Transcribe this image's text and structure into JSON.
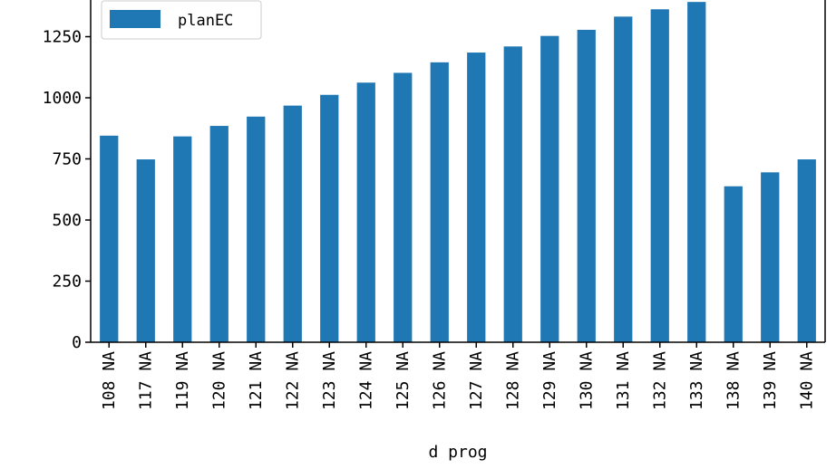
{
  "chart_data": {
    "type": "bar",
    "title": "",
    "xlabel": "d prog",
    "ylabel": "",
    "categories": [
      "108 NA",
      "117 NA",
      "119 NA",
      "120 NA",
      "121 NA",
      "122 NA",
      "123 NA",
      "124 NA",
      "125 NA",
      "126 NA",
      "127 NA",
      "128 NA",
      "129 NA",
      "130 NA",
      "131 NA",
      "132 NA",
      "133 NA",
      "138 NA",
      "139 NA",
      "140 NA"
    ],
    "series": [
      {
        "name": "planEC",
        "color": "#1f77b4",
        "values": [
          845,
          748,
          842,
          885,
          923,
          968,
          1012,
          1062,
          1102,
          1145,
          1185,
          1210,
          1253,
          1278,
          1332,
          1362,
          1392,
          638,
          695,
          748
        ]
      }
    ],
    "ylim": [
      0,
      1400
    ],
    "yticks": [
      0,
      250,
      500,
      750,
      1000,
      1250
    ],
    "grid": false,
    "legend_position": "top-left"
  }
}
